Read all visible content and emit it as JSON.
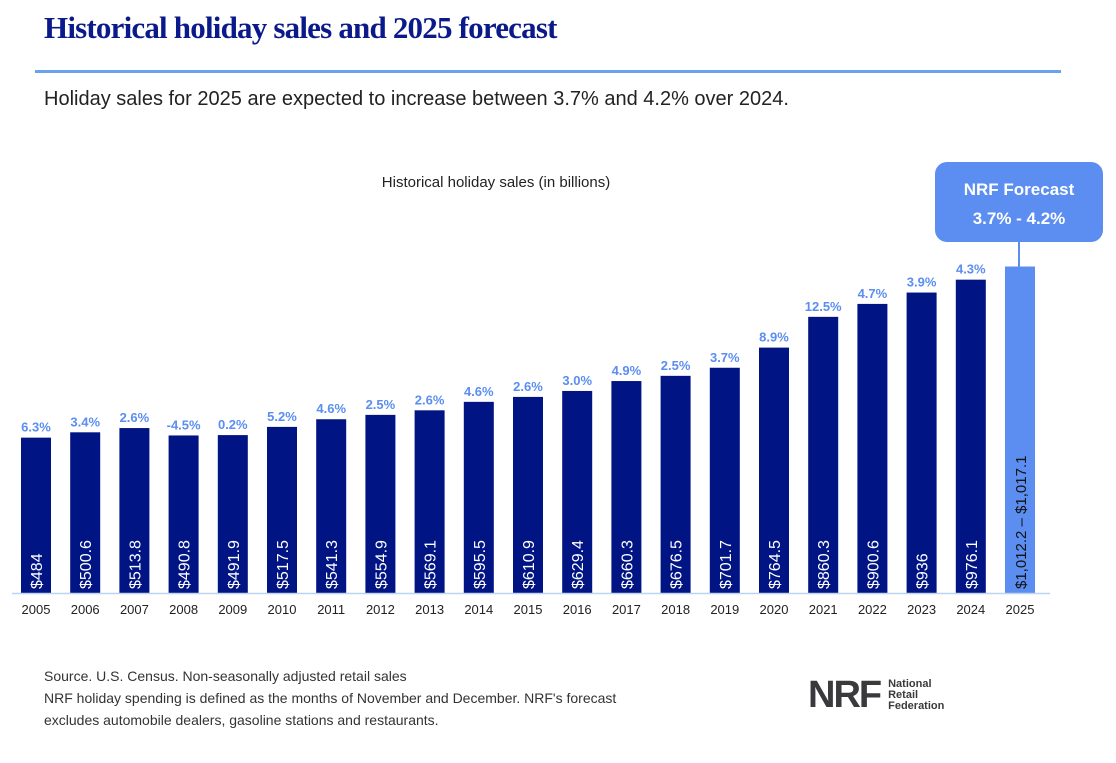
{
  "header": {
    "title": "Historical holiday sales and 2025 forecast",
    "subtitle": "Holiday sales for 2025 are expected to increase between 3.7% and 4.2% over 2024."
  },
  "chart_data": {
    "type": "bar",
    "title": "Historical holiday sales (in billions)",
    "categories": [
      "2005",
      "2006",
      "2007",
      "2008",
      "2009",
      "2010",
      "2011",
      "2012",
      "2013",
      "2014",
      "2015",
      "2016",
      "2017",
      "2018",
      "2019",
      "2020",
      "2021",
      "2022",
      "2023",
      "2024",
      "2025"
    ],
    "values": [
      484,
      500.6,
      513.8,
      490.8,
      491.9,
      517.5,
      541.3,
      554.9,
      569.1,
      595.5,
      610.9,
      629.4,
      660.3,
      676.5,
      701.7,
      764.5,
      860.3,
      900.6,
      936,
      976.1,
      1017.1
    ],
    "value_labels": [
      "$484",
      "$500.6",
      "$513.8",
      "$490.8",
      "$491.9",
      "$517.5",
      "$541.3",
      "$554.9",
      "$569.1",
      "$595.5",
      "$610.9",
      "$629.4",
      "$660.3",
      "$676.5",
      "$701.7",
      "$764.5",
      "$860.3",
      "$900.6",
      "$936",
      "$976.1",
      "$1,012.2 – $1,017.1"
    ],
    "growth_labels": [
      "6.3%",
      "3.4%",
      "2.6%",
      "-4.5%",
      "0.2%",
      "5.2%",
      "4.6%",
      "2.5%",
      "2.6%",
      "4.6%",
      "2.6%",
      "3.0%",
      "4.9%",
      "2.5%",
      "3.7%",
      "8.9%",
      "12.5%",
      "4.7%",
      "3.9%",
      "4.3%",
      ""
    ],
    "forecast_range": [
      1012.2,
      1017.1
    ],
    "forecast_callout": {
      "title": "NRF Forecast",
      "range": "3.7% - 4.2%"
    },
    "ylim": [
      0,
      1050
    ],
    "grid": false,
    "colors": {
      "historical": "#001484",
      "forecast": "#5b8ef0",
      "growth_label": "#5b8ef0"
    }
  },
  "footer": {
    "source_lines": [
      "Source. U.S. Census. Non-seasonally adjusted retail sales",
      "NRF holiday spending is defined as the months of November and December. NRF's forecast",
      "excludes automobile dealers, gasoline stations and restaurants."
    ],
    "logo": {
      "mark": "NRF",
      "lines": [
        "National",
        "Retail",
        "Federation"
      ]
    }
  }
}
